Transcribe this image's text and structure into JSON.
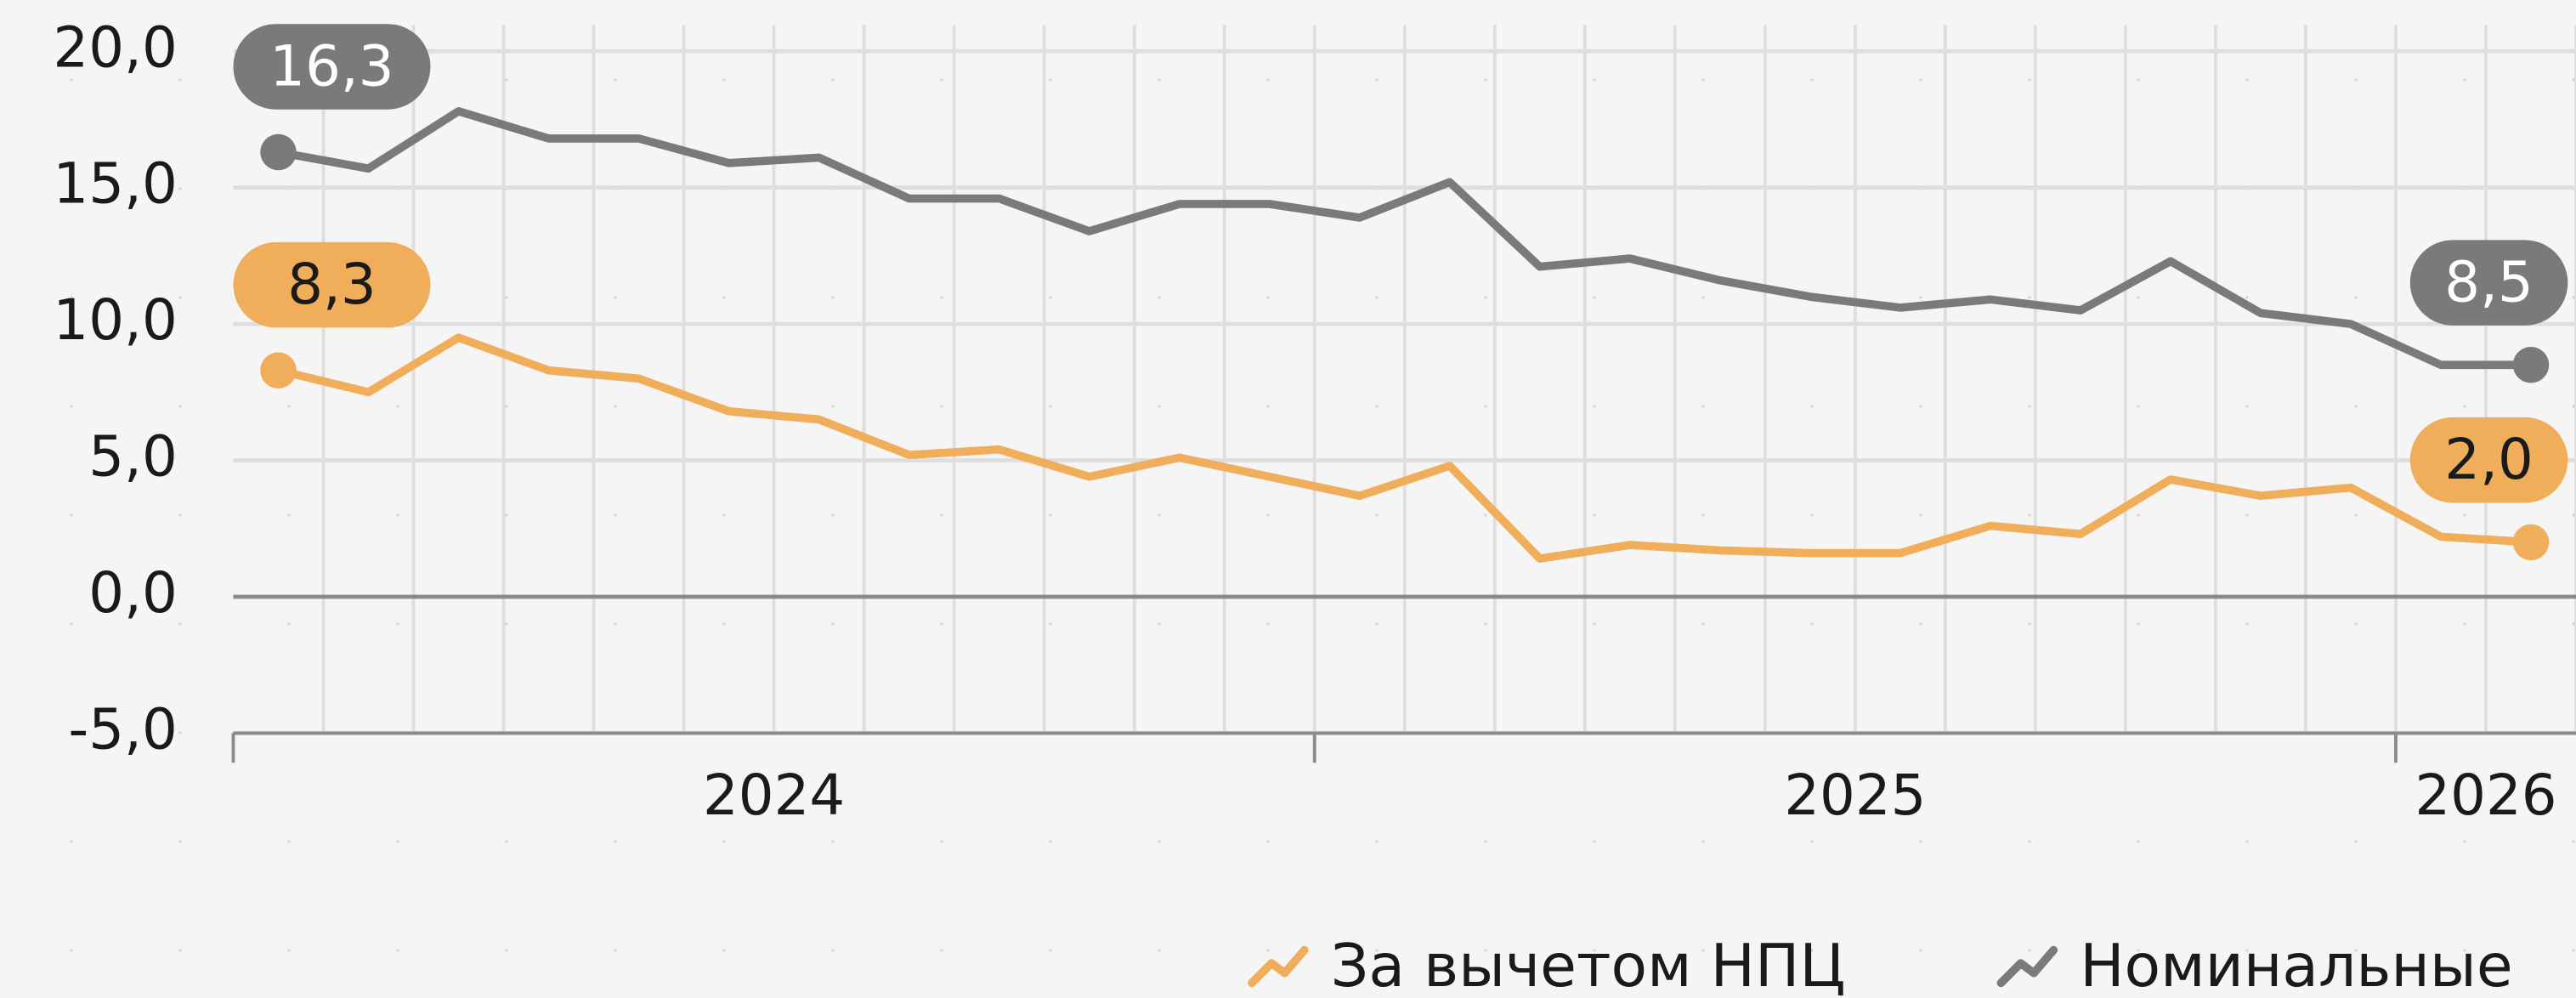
{
  "chart_data": {
    "type": "line",
    "categories": [
      null,
      null,
      null,
      null,
      null,
      null,
      null,
      null,
      null,
      null,
      null,
      null,
      null,
      null,
      null,
      null,
      null,
      null,
      null,
      null,
      null,
      null,
      null,
      null,
      null,
      null
    ],
    "x_groups": [
      {
        "label": "2024",
        "count": 12
      },
      {
        "label": "2025",
        "count": 12
      },
      {
        "label": "2026",
        "count": 2
      }
    ],
    "ylim": [
      -5,
      20
    ],
    "yticks": [
      {
        "value": -5,
        "label": "-5,0"
      },
      {
        "value": 0,
        "label": "0,0"
      },
      {
        "value": 5,
        "label": "5,0"
      },
      {
        "value": 10,
        "label": "10,0"
      },
      {
        "value": 15,
        "label": "15,0"
      },
      {
        "value": 20,
        "label": "20,0"
      }
    ],
    "grid": true,
    "legend": "bottom-right",
    "series": [
      {
        "name": "За вычетом НПЦ",
        "color": "#f0ad5a",
        "values": [
          8.3,
          7.5,
          9.5,
          8.3,
          8.0,
          6.8,
          6.5,
          5.2,
          5.4,
          4.4,
          5.1,
          4.4,
          3.7,
          4.8,
          1.4,
          1.9,
          1.7,
          1.6,
          1.6,
          2.6,
          2.3,
          4.3,
          3.7,
          4.0,
          2.2,
          2.0
        ],
        "value_labels": {
          "first": "8,3",
          "last": "2,0"
        }
      },
      {
        "name": "Номинальные",
        "color": "#7a7a7a",
        "values": [
          16.3,
          15.7,
          17.8,
          16.8,
          16.8,
          15.9,
          16.1,
          14.6,
          14.6,
          13.4,
          14.4,
          14.4,
          13.9,
          15.2,
          12.1,
          12.4,
          11.6,
          11.0,
          10.6,
          10.9,
          10.5,
          12.3,
          10.4,
          10.0,
          8.5,
          8.5
        ],
        "value_labels": {
          "first": "16,3",
          "last": "8,5"
        }
      }
    ]
  }
}
